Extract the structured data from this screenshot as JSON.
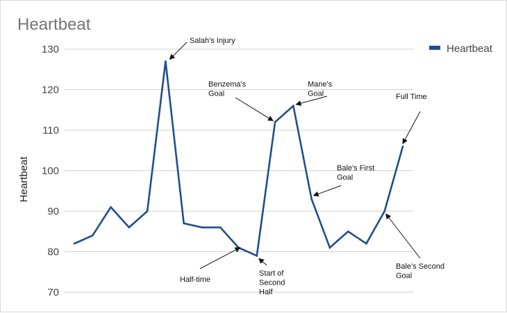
{
  "chart_data": {
    "type": "line",
    "title": "Heartbeat",
    "ylabel": "Heartbeat",
    "xlabel": "",
    "ylim": [
      70,
      130
    ],
    "yticks": [
      70,
      80,
      90,
      100,
      110,
      120,
      130
    ],
    "grid": true,
    "legend_position": "top-right",
    "series": [
      {
        "name": "Heartbeat",
        "color": "#1f4e8c",
        "values": [
          82,
          84,
          91,
          86,
          90,
          127,
          87,
          86,
          86,
          81,
          79,
          112,
          116,
          93,
          81,
          85,
          82,
          90,
          106
        ]
      }
    ],
    "annotations": [
      {
        "lines": [
          "Salah's Injury"
        ],
        "point_index": 5
      },
      {
        "lines": [
          "Benzema's",
          "Goal"
        ],
        "point_index": 11
      },
      {
        "lines": [
          "Mane's",
          "Goal"
        ],
        "point_index": 12
      },
      {
        "lines": [
          "Full Time"
        ],
        "point_index": 18
      },
      {
        "lines": [
          "Bale's First",
          "Goal"
        ],
        "point_index": 13
      },
      {
        "lines": [
          "Half-time"
        ],
        "point_index": 9
      },
      {
        "lines": [
          "Start of",
          "Second",
          "Half"
        ],
        "point_index": 10
      },
      {
        "lines": [
          "Bale's Second",
          "Goal"
        ],
        "point_index": 17
      }
    ]
  }
}
